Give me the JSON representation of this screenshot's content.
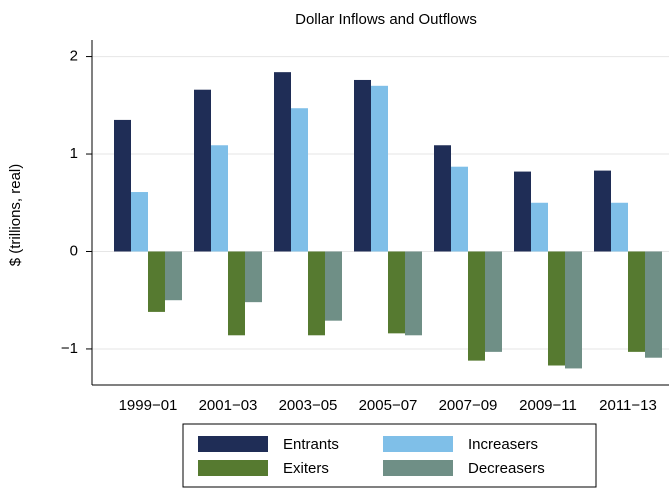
{
  "chart_data": {
    "type": "bar",
    "title": "Dollar Inflows and Outflows",
    "y_label": "$ (trillions, real)",
    "categories": [
      "1999−01",
      "2001−03",
      "2003−05",
      "2005−07",
      "2007−09",
      "2009−11",
      "2011−13"
    ],
    "series": [
      {
        "name": "Entrants",
        "color": "#1f2d56",
        "values": [
          1.35,
          1.66,
          1.84,
          1.76,
          1.09,
          0.82,
          0.83
        ]
      },
      {
        "name": "Increasers",
        "color": "#7fbfe8",
        "values": [
          0.61,
          1.09,
          1.47,
          1.7,
          0.87,
          0.5,
          0.5
        ]
      },
      {
        "name": "Exiters",
        "color": "#567a30",
        "values": [
          -0.62,
          -0.86,
          -0.86,
          -0.84,
          -1.12,
          -1.17,
          -1.03
        ]
      },
      {
        "name": "Decreasers",
        "color": "#6f8f86",
        "values": [
          -0.5,
          -0.52,
          -0.71,
          -0.86,
          -1.03,
          -1.2,
          -1.09
        ]
      }
    ],
    "ylim": [
      -1.37,
      2.17
    ],
    "yticks": [
      {
        "value": -1,
        "label": "−1"
      },
      0,
      1,
      2
    ],
    "grid": true,
    "legend": "bottom"
  }
}
